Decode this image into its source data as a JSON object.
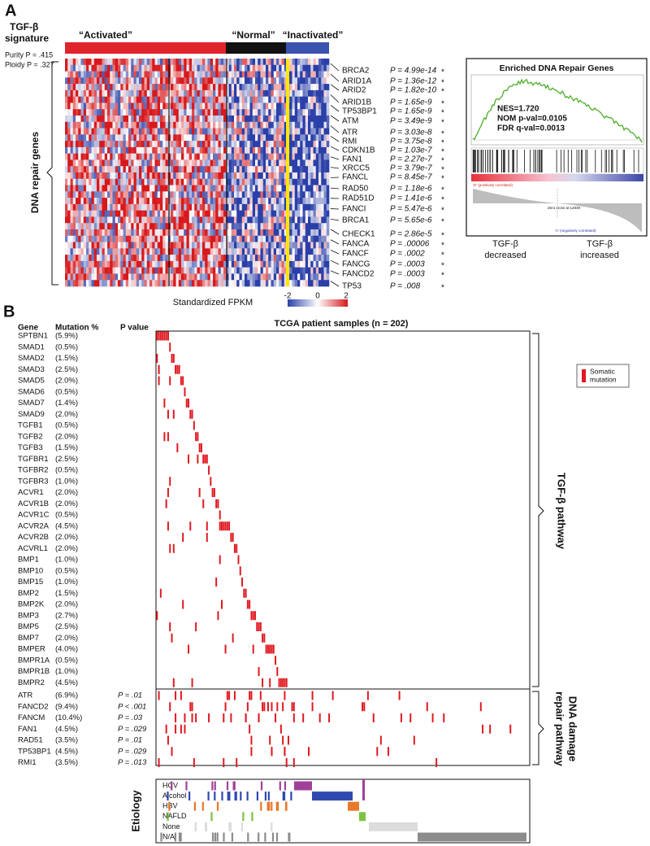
{
  "panel_a": {
    "label": "A",
    "signature": [
      "TGF-β",
      "signature"
    ],
    "purity": "Purity P = .415",
    "ploidy": "Ploidy P = .327",
    "groups": [
      "“Activated”",
      "“Normal”",
      "“Inactivated”"
    ],
    "y_label": "DNA repair genes",
    "marker": "*",
    "genes": [
      {
        "name": "BRCA2",
        "p": "P = 4.99e-14"
      },
      {
        "name": "ARID1A",
        "p": "P = 1.36e-12"
      },
      {
        "name": "ARID2",
        "p": "P = 1.82e-10"
      },
      {
        "name": "ARID1B",
        "p": "P = 1.65e-9"
      },
      {
        "name": "TP53BP1",
        "p": "P = 1.65e-9"
      },
      {
        "name": "ATM",
        "p": "P = 3.49e-9"
      },
      {
        "name": "ATR",
        "p": "P = 3.03e-8"
      },
      {
        "name": "RMI",
        "p": "P = 3.75e-8"
      },
      {
        "name": "CDKN1B",
        "p": "P = 1.03e-7"
      },
      {
        "name": "FAN1",
        "p": "P = 2.27e-7"
      },
      {
        "name": "XRCC5",
        "p": "P = 3.79e-7"
      },
      {
        "name": "FANCL",
        "p": "P = 8.45e-7"
      },
      {
        "name": "RAD50",
        "p": "P = 1.18e-6"
      },
      {
        "name": "RAD51D",
        "p": "P = 1.41e-6"
      },
      {
        "name": "FANCI",
        "p": "P = 5.47e-6"
      },
      {
        "name": "BRCA1",
        "p": "P = 5.65e-6"
      },
      {
        "name": "CHECK1",
        "p": "P = 2.86e-5"
      },
      {
        "name": "FANCA",
        "p": "P = .00006"
      },
      {
        "name": "FANCF",
        "p": "P = .0002"
      },
      {
        "name": "FANCG",
        "p": "P = .0003"
      },
      {
        "name": "FANCD2",
        "p": "P = .0003"
      },
      {
        "name": "TP53",
        "p": "P = .008"
      }
    ],
    "colorbar": {
      "label": "Standardized FPKM",
      "ticks": [
        "-2",
        "0",
        "2"
      ]
    },
    "gsea": {
      "title": "Enriched DNA Repair Genes",
      "stats": [
        "NES=1.720",
        "NOM p-val=0.0105",
        "FDR q-val=0.0013"
      ],
      "pos_label": "'D' (positively correlated)",
      "zero_label": "Zero cross at 12839",
      "neg_label": "'A' (negatively correlated)",
      "left": [
        "TGF-β",
        "decreased"
      ],
      "right": [
        "TGF-β",
        "increased"
      ]
    }
  },
  "panel_b": {
    "label": "B",
    "headers": [
      "Gene",
      "Mutation %",
      "P value"
    ],
    "title": "TCGA patient samples (n = 202)",
    "tgf_genes": [
      {
        "gene": "SPTBN1",
        "pct": "(5.9%)"
      },
      {
        "gene": "SMAD1",
        "pct": "(0.5%)"
      },
      {
        "gene": "SMAD2",
        "pct": "(1.5%)"
      },
      {
        "gene": "SMAD3",
        "pct": "(2.5%)"
      },
      {
        "gene": "SMAD5",
        "pct": "(2.0%)"
      },
      {
        "gene": "SMAD6",
        "pct": "(0.5%)"
      },
      {
        "gene": "SMAD7",
        "pct": "(1.4%)"
      },
      {
        "gene": "SMAD9",
        "pct": "(2.0%)"
      },
      {
        "gene": "TGFB1",
        "pct": "(0.5%)"
      },
      {
        "gene": "TGFB2",
        "pct": "(2.0%)"
      },
      {
        "gene": "TGFB3",
        "pct": "(1.5%)"
      },
      {
        "gene": "TGFBR1",
        "pct": "(2.5%)"
      },
      {
        "gene": "TGFBR2",
        "pct": "(0.5%)"
      },
      {
        "gene": "TGFBR3",
        "pct": "(1.0%)"
      },
      {
        "gene": "ACVR1",
        "pct": "(2.0%)"
      },
      {
        "gene": "ACVR1B",
        "pct": "(2.0%)"
      },
      {
        "gene": "ACVR1C",
        "pct": "(0.5%)"
      },
      {
        "gene": "ACVR2A",
        "pct": "(4.5%)"
      },
      {
        "gene": "ACVR2B",
        "pct": "(2.0%)"
      },
      {
        "gene": "ACVRL1",
        "pct": "(2.0%)"
      },
      {
        "gene": "BMP1",
        "pct": "(1.0%)"
      },
      {
        "gene": "BMP10",
        "pct": "(0.5%)"
      },
      {
        "gene": "BMP15",
        "pct": "(1.0%)"
      },
      {
        "gene": "BMP2",
        "pct": "(1.5%)"
      },
      {
        "gene": "BMP2K",
        "pct": "(2.0%)"
      },
      {
        "gene": "BMP3",
        "pct": "(2.7%)"
      },
      {
        "gene": "BMP5",
        "pct": "(2.5%)"
      },
      {
        "gene": "BMP7",
        "pct": "(2.0%)"
      },
      {
        "gene": "BMPER",
        "pct": "(4.0%)"
      },
      {
        "gene": "BMPR1A",
        "pct": "(0.5%)"
      },
      {
        "gene": "BMPR1B",
        "pct": "(1.0%)"
      },
      {
        "gene": "BMPR2",
        "pct": "(4.5%)"
      }
    ],
    "dna_genes": [
      {
        "gene": "ATR",
        "pct": "(6.9%)",
        "p": "P = .01"
      },
      {
        "gene": "FANCD2",
        "pct": "(9.4%)",
        "p": "P < .001"
      },
      {
        "gene": "FANCM",
        "pct": "(10.4%)",
        "p": "P = .03"
      },
      {
        "gene": "FAN1",
        "pct": "(4.5%)",
        "p": "P = .029"
      },
      {
        "gene": "RAD51",
        "pct": "(3.5%)",
        "p": "P = .01"
      },
      {
        "gene": "TP53BP1",
        "pct": "(4.5%)",
        "p": "P = .029"
      },
      {
        "gene": "RMI1",
        "pct": "(3.5%)",
        "p": "P = .013"
      }
    ],
    "tgf_label": "TGF-β pathway",
    "dna_label": [
      "DNA damage",
      "repair pathway"
    ],
    "legend": [
      "Somatic",
      "mutation"
    ],
    "etiology_title": "Etiology",
    "etiology": [
      "HCV",
      "Alcohol",
      "HBV",
      "NAFLD",
      "None",
      "N/A"
    ]
  }
}
